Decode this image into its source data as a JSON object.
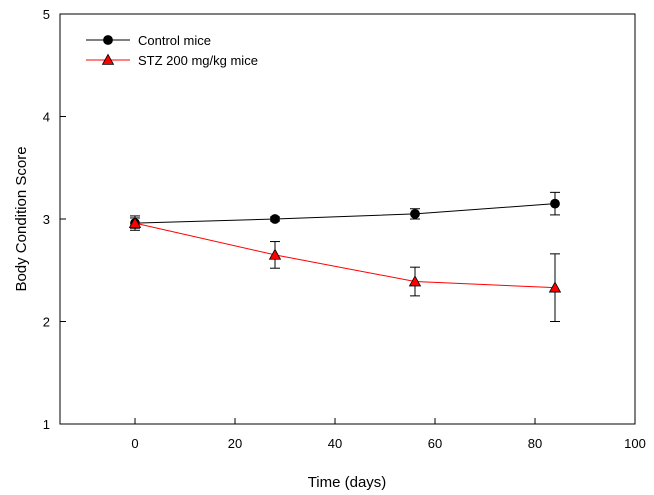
{
  "chart_data": {
    "type": "line",
    "title": "",
    "xlabel": "Time (days)",
    "ylabel": "Body Condition Score",
    "xlim": [
      -15,
      100
    ],
    "ylim": [
      1,
      5
    ],
    "xticks": [
      0,
      20,
      40,
      60,
      80,
      100
    ],
    "yticks": [
      1,
      2,
      3,
      4,
      5
    ],
    "grid": false,
    "legend_position": "top-left",
    "series": [
      {
        "name": "Control mice",
        "color": "#000000",
        "marker": "circle",
        "x": [
          0,
          28,
          56,
          84
        ],
        "y": [
          2.96,
          3.0,
          3.05,
          3.15
        ],
        "error": [
          0.05,
          0.02,
          0.05,
          0.11
        ]
      },
      {
        "name": "STZ 200 mg/kg mice",
        "color": "#ff0000",
        "marker": "triangle",
        "x": [
          0,
          28,
          56,
          84
        ],
        "y": [
          2.96,
          2.65,
          2.39,
          2.33
        ],
        "error": [
          0.07,
          0.13,
          0.14,
          0.33
        ]
      }
    ]
  }
}
